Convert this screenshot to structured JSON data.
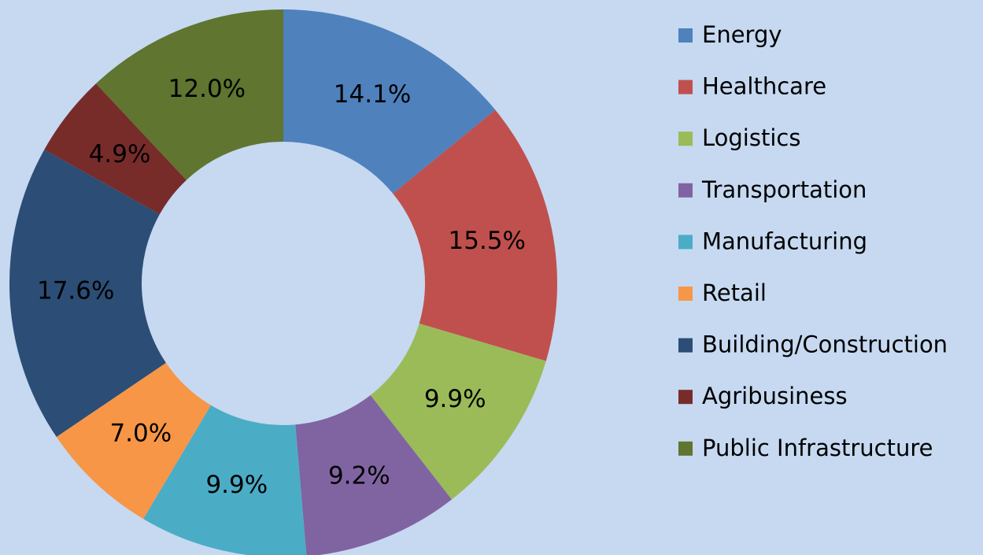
{
  "chart_data": {
    "type": "pie",
    "categories": [
      "Energy",
      "Healthcare",
      "Logistics",
      "Transportation",
      "Manufacturing",
      "Retail",
      "Building/Construction",
      "Agribusiness",
      "Public Infrastructure"
    ],
    "values": [
      14.1,
      15.5,
      9.9,
      9.2,
      9.9,
      7.0,
      17.6,
      4.9,
      12.0
    ],
    "value_labels": [
      "14.1%",
      "15.5%",
      "9.9%",
      "9.2%",
      "9.9%",
      "7.0%",
      "17.6%",
      "4.9%",
      "12.0%"
    ],
    "colors": [
      "#4f81bd",
      "#c0504d",
      "#9bbb59",
      "#8064a2",
      "#4bacc6",
      "#f79646",
      "#2c4d75",
      "#772c2a",
      "#5f7530"
    ],
    "donut": true,
    "legend": "right"
  }
}
